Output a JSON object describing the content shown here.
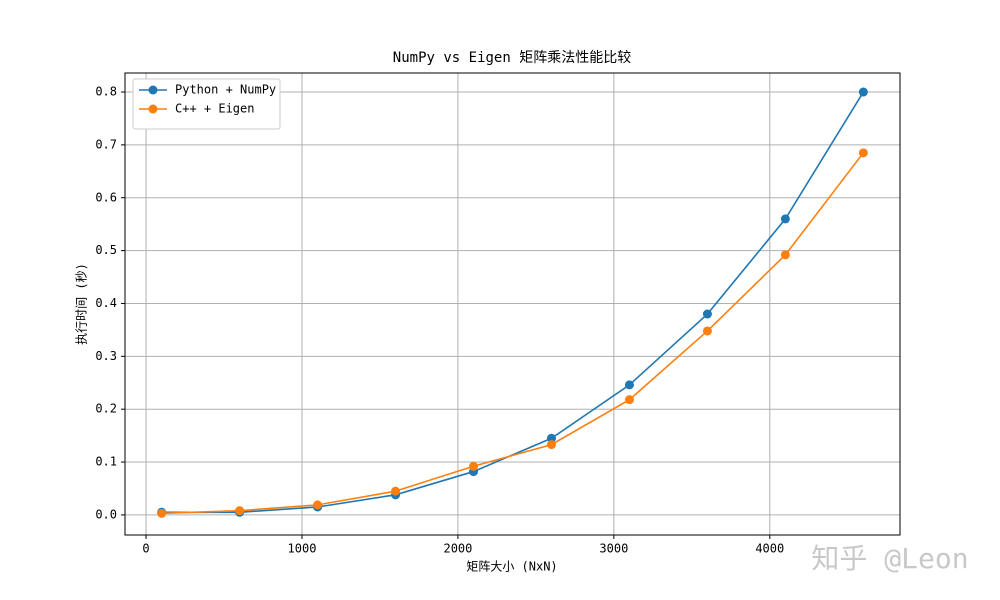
{
  "chart_data": {
    "type": "line",
    "title": "NumPy vs Eigen 矩阵乘法性能比较",
    "xlabel": "矩阵大小 (NxN)",
    "ylabel": "执行时间 (秒)",
    "watermark": "知乎 @Leon",
    "x": [
      100,
      600,
      1100,
      1600,
      2100,
      2600,
      3100,
      3600,
      4100,
      4600
    ],
    "series": [
      {
        "name": "Python + NumPy",
        "color": "#1f77b4",
        "values": [
          0.005,
          0.005,
          0.015,
          0.038,
          0.082,
          0.145,
          0.246,
          0.38,
          0.56,
          0.8
        ]
      },
      {
        "name": "C++ + Eigen",
        "color": "#ff7f0e",
        "values": [
          0.003,
          0.008,
          0.019,
          0.045,
          0.092,
          0.133,
          0.218,
          0.348,
          0.492,
          0.685
        ]
      }
    ],
    "xlim": [
      -135,
      4835
    ],
    "xticks": [
      0,
      1000,
      2000,
      3000,
      4000
    ],
    "ylim": [
      -0.038,
      0.836
    ],
    "yticks": [
      {
        "value": 0,
        "label": "0.0"
      },
      0.1,
      0.2,
      0.3,
      0.4,
      0.5,
      0.6,
      0.7,
      0.8
    ],
    "grid": true,
    "legend": "upper-left"
  }
}
